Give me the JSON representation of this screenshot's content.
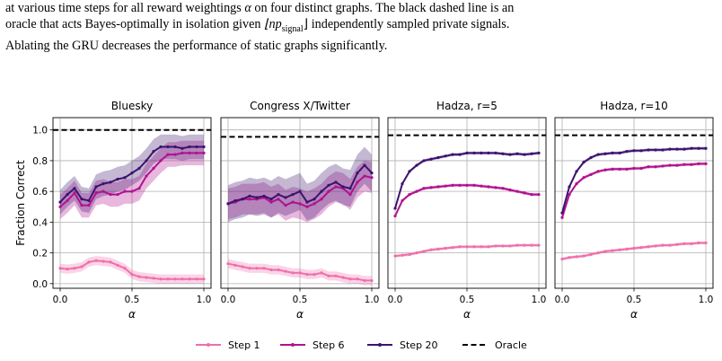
{
  "caption": {
    "line1_pre": "at various time steps for all reward weightings ",
    "line1_alpha": "α",
    "line1_post": " on four distinct graphs. The black dashed line is an",
    "line2_pre": "oracle that acts Bayes-optimally in isolation given ",
    "line2_math": "⌊np",
    "line2_sub": "signal",
    "line2_close": "⌋",
    "line2_post": " independently sampled private signals.",
    "line3": "Ablating the GRU decreases the performance of static graphs significantly."
  },
  "chart_data": [
    {
      "type": "line",
      "title": "Bluesky",
      "xlabel": "α",
      "ylabel": "Fraction Correct",
      "xlim": [
        -0.05,
        1.05
      ],
      "ylim": [
        -0.03,
        1.08
      ],
      "xticks": [
        "0.0",
        "0.5",
        "1.0"
      ],
      "yticks": [
        "0.0",
        "0.2",
        "0.4",
        "0.6",
        "0.8",
        "1.0"
      ],
      "grid": true,
      "oracle": 1.0,
      "x": [
        0,
        0.05,
        0.1,
        0.15,
        0.2,
        0.25,
        0.3,
        0.35,
        0.4,
        0.45,
        0.5,
        0.55,
        0.6,
        0.65,
        0.7,
        0.75,
        0.8,
        0.85,
        0.9,
        0.95,
        1.0
      ],
      "series": [
        {
          "name": "Step 1",
          "values": [
            0.1,
            0.095,
            0.1,
            0.11,
            0.14,
            0.15,
            0.145,
            0.14,
            0.12,
            0.1,
            0.06,
            0.045,
            0.04,
            0.035,
            0.03,
            0.03,
            0.03,
            0.03,
            0.03,
            0.03,
            0.03
          ],
          "band": 0.03
        },
        {
          "name": "Step 6",
          "values": [
            0.5,
            0.54,
            0.59,
            0.51,
            0.51,
            0.59,
            0.6,
            0.58,
            0.58,
            0.6,
            0.6,
            0.62,
            0.7,
            0.75,
            0.8,
            0.84,
            0.84,
            0.85,
            0.85,
            0.85,
            0.85
          ],
          "band": 0.08
        },
        {
          "name": "Step 20",
          "values": [
            0.53,
            0.58,
            0.62,
            0.55,
            0.54,
            0.63,
            0.65,
            0.66,
            0.68,
            0.69,
            0.72,
            0.75,
            0.8,
            0.86,
            0.89,
            0.89,
            0.89,
            0.88,
            0.89,
            0.89,
            0.89
          ],
          "band": 0.08
        }
      ]
    },
    {
      "type": "line",
      "title": "Congress X/Twitter",
      "xlabel": "α",
      "ylabel": "",
      "xlim": [
        -0.05,
        1.05
      ],
      "ylim": [
        -0.03,
        1.08
      ],
      "xticks": [
        "0.0",
        "0.5",
        "1.0"
      ],
      "grid": true,
      "oracle": 0.955,
      "x": [
        0,
        0.05,
        0.1,
        0.15,
        0.2,
        0.25,
        0.3,
        0.35,
        0.4,
        0.45,
        0.5,
        0.55,
        0.6,
        0.65,
        0.7,
        0.75,
        0.8,
        0.85,
        0.9,
        0.95,
        1.0
      ],
      "series": [
        {
          "name": "Step 1",
          "values": [
            0.13,
            0.12,
            0.11,
            0.1,
            0.1,
            0.1,
            0.09,
            0.09,
            0.08,
            0.07,
            0.07,
            0.06,
            0.06,
            0.07,
            0.05,
            0.05,
            0.04,
            0.03,
            0.03,
            0.02,
            0.02
          ],
          "band": 0.03
        },
        {
          "name": "Step 6",
          "values": [
            0.52,
            0.53,
            0.55,
            0.55,
            0.55,
            0.56,
            0.53,
            0.55,
            0.51,
            0.53,
            0.52,
            0.5,
            0.52,
            0.55,
            0.6,
            0.63,
            0.62,
            0.58,
            0.66,
            0.7,
            0.69
          ],
          "band": 0.1
        },
        {
          "name": "Step 20",
          "values": [
            0.52,
            0.54,
            0.55,
            0.57,
            0.56,
            0.57,
            0.55,
            0.58,
            0.56,
            0.58,
            0.6,
            0.53,
            0.55,
            0.6,
            0.64,
            0.66,
            0.63,
            0.62,
            0.72,
            0.77,
            0.72
          ],
          "band": 0.12
        }
      ]
    },
    {
      "type": "line",
      "title": "Hadza, r=5",
      "xlabel": "α",
      "ylabel": "",
      "xlim": [
        -0.05,
        1.05
      ],
      "ylim": [
        -0.03,
        1.08
      ],
      "xticks": [
        "0.0",
        "0.5",
        "1.0"
      ],
      "grid": true,
      "oracle": 0.965,
      "x": [
        0,
        0.05,
        0.1,
        0.15,
        0.2,
        0.25,
        0.3,
        0.35,
        0.4,
        0.45,
        0.5,
        0.55,
        0.6,
        0.65,
        0.7,
        0.75,
        0.8,
        0.85,
        0.9,
        0.95,
        1.0
      ],
      "series": [
        {
          "name": "Step 1",
          "values": [
            0.18,
            0.185,
            0.19,
            0.2,
            0.21,
            0.22,
            0.225,
            0.23,
            0.235,
            0.24,
            0.24,
            0.24,
            0.24,
            0.24,
            0.245,
            0.245,
            0.245,
            0.25,
            0.25,
            0.25,
            0.25
          ],
          "band": 0.01
        },
        {
          "name": "Step 6",
          "values": [
            0.44,
            0.54,
            0.58,
            0.6,
            0.62,
            0.625,
            0.63,
            0.635,
            0.64,
            0.64,
            0.64,
            0.64,
            0.635,
            0.63,
            0.625,
            0.62,
            0.61,
            0.6,
            0.59,
            0.58,
            0.58
          ],
          "band": 0.01
        },
        {
          "name": "Step 20",
          "values": [
            0.49,
            0.65,
            0.73,
            0.77,
            0.8,
            0.81,
            0.82,
            0.83,
            0.84,
            0.84,
            0.85,
            0.85,
            0.85,
            0.85,
            0.85,
            0.845,
            0.84,
            0.845,
            0.84,
            0.845,
            0.85
          ],
          "band": 0.01
        }
      ]
    },
    {
      "type": "line",
      "title": "Hadza, r=10",
      "xlabel": "α",
      "ylabel": "",
      "xlim": [
        -0.05,
        1.05
      ],
      "ylim": [
        -0.03,
        1.08
      ],
      "xticks": [
        "0.0",
        "0.5",
        "1.0"
      ],
      "grid": true,
      "oracle": 0.965,
      "x": [
        0,
        0.05,
        0.1,
        0.15,
        0.2,
        0.25,
        0.3,
        0.35,
        0.4,
        0.45,
        0.5,
        0.55,
        0.6,
        0.65,
        0.7,
        0.75,
        0.8,
        0.85,
        0.9,
        0.95,
        1.0
      ],
      "series": [
        {
          "name": "Step 1",
          "values": [
            0.16,
            0.17,
            0.175,
            0.18,
            0.19,
            0.2,
            0.21,
            0.215,
            0.22,
            0.225,
            0.23,
            0.235,
            0.24,
            0.245,
            0.25,
            0.25,
            0.255,
            0.26,
            0.26,
            0.265,
            0.265
          ],
          "band": 0.01
        },
        {
          "name": "Step 6",
          "values": [
            0.43,
            0.58,
            0.65,
            0.69,
            0.71,
            0.73,
            0.74,
            0.745,
            0.745,
            0.745,
            0.75,
            0.75,
            0.76,
            0.76,
            0.765,
            0.77,
            0.77,
            0.775,
            0.775,
            0.78,
            0.78
          ],
          "band": 0.01
        },
        {
          "name": "Step 20",
          "values": [
            0.46,
            0.63,
            0.73,
            0.79,
            0.82,
            0.84,
            0.845,
            0.85,
            0.85,
            0.86,
            0.865,
            0.865,
            0.87,
            0.87,
            0.87,
            0.875,
            0.875,
            0.875,
            0.88,
            0.88,
            0.88
          ],
          "band": 0.01
        }
      ]
    }
  ],
  "legend": {
    "placement": "bottom-center",
    "items": [
      {
        "label": "Step 1",
        "color": "#ef6fab"
      },
      {
        "label": "Step 6",
        "color": "#b0128e"
      },
      {
        "label": "Step 20",
        "color": "#3c136e"
      },
      {
        "label": "Oracle",
        "color": "#000000"
      }
    ]
  },
  "colors": {
    "step1": "#ef6fab",
    "step6": "#b0128e",
    "step20": "#3c136e",
    "oracle": "#000000",
    "grid": "#b0b0b0"
  }
}
